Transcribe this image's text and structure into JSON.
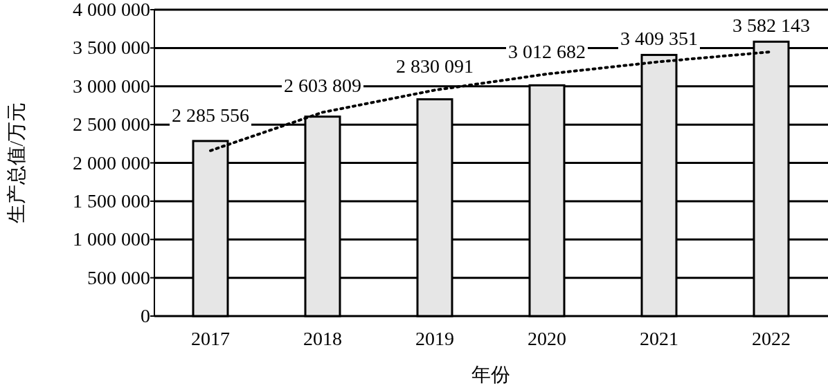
{
  "chart_data": {
    "type": "bar",
    "xlabel": "年份",
    "ylabel": "生产总值/万元",
    "categories": [
      "2017",
      "2018",
      "2019",
      "2020",
      "2021",
      "2022"
    ],
    "series": [
      {
        "type": "bar",
        "color": "#e6e6e6",
        "values": [
          2285556,
          2603809,
          2830091,
          3012682,
          3409351,
          3582143
        ],
        "value_labels": [
          "2 285 556",
          "2 603 809",
          "2 830 091",
          "3 012 682",
          "3 409 351",
          "3 582 143"
        ]
      },
      {
        "type": "line",
        "color": "#000000",
        "line_style": "dotted",
        "values": [
          2160000,
          2660000,
          2950000,
          3160000,
          3320000,
          3450000
        ]
      }
    ],
    "ylim": [
      0,
      4000000
    ],
    "yticks": [
      {
        "value": 0,
        "label": "0"
      },
      {
        "value": 500000,
        "label": "500 000"
      },
      {
        "value": 1000000,
        "label": "1 000 000"
      },
      {
        "value": 1500000,
        "label": "1 500 000"
      },
      {
        "value": 2000000,
        "label": "2 000 000"
      },
      {
        "value": 2500000,
        "label": "2 500 000"
      },
      {
        "value": 3000000,
        "label": "3 000 000"
      },
      {
        "value": 3500000,
        "label": "3 500 000"
      },
      {
        "value": 4000000,
        "label": "4 000 000"
      }
    ],
    "grid": "y"
  }
}
